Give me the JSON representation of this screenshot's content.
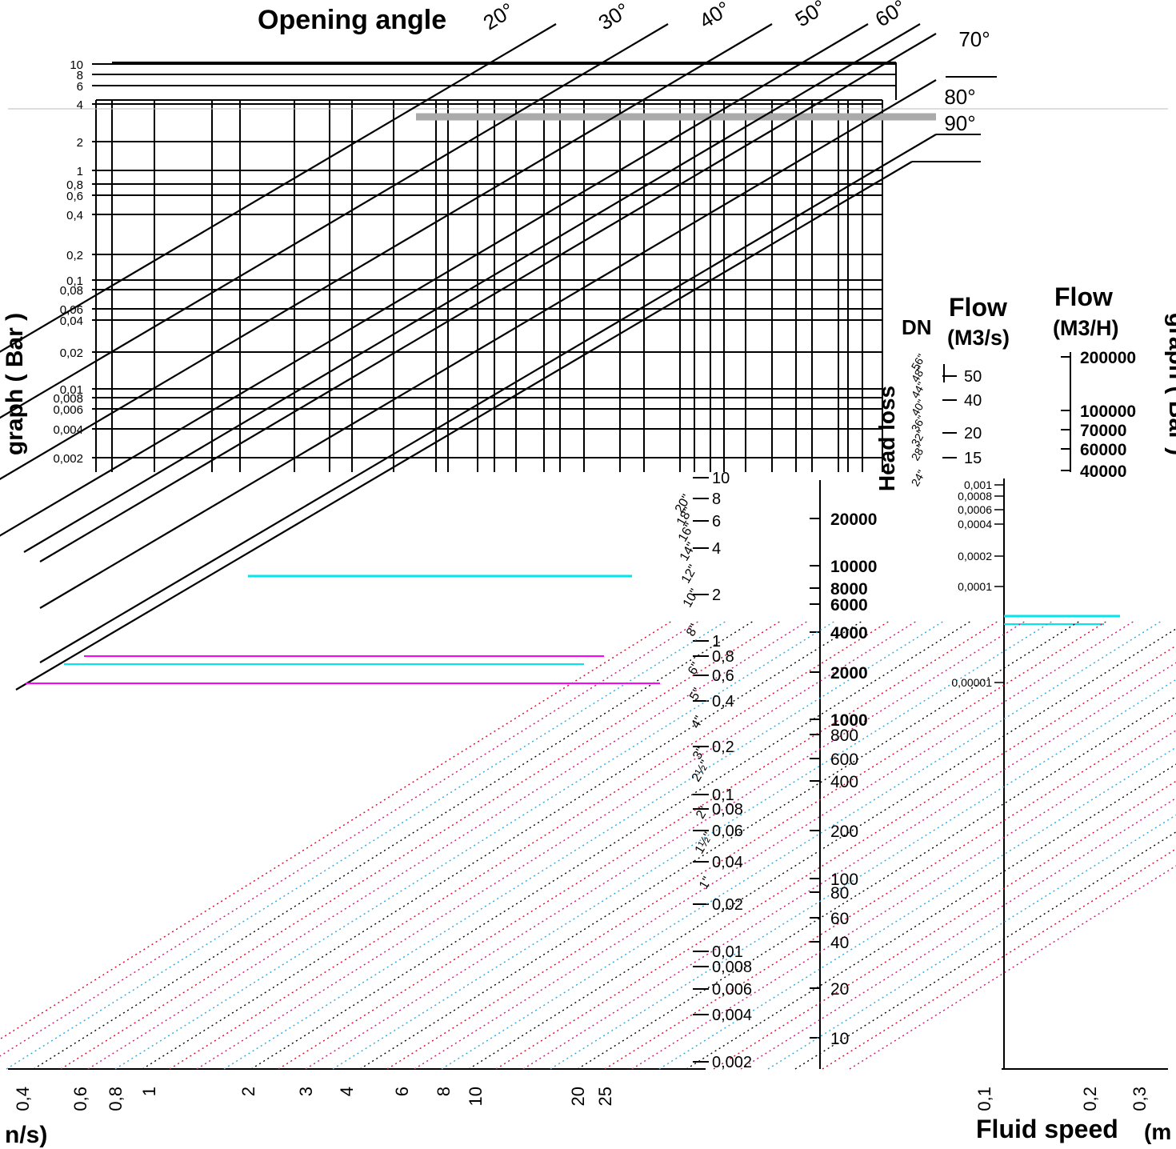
{
  "chart_data": {
    "type": "nomogram",
    "title": "Opening angle",
    "opening_angles": [
      "20°",
      "30°",
      "40°",
      "50°",
      "60°",
      "70°",
      "80°",
      "90°"
    ],
    "top_y_ticks": [
      "10",
      "8",
      "6",
      "4",
      "2",
      "1",
      "0,8",
      "0,6",
      "0,4",
      "0,2",
      "0,1",
      "0,08",
      "0,06",
      "0,04",
      "0,02",
      "0,01",
      "0,008",
      "0,006",
      "0,004",
      "0,002"
    ],
    "left_side_label": "graph ( Bar )",
    "right_side_label": "graph ( Bar )",
    "dn_label": "DN",
    "dn_sizes": [
      "56\"",
      "48\"",
      "44\"",
      "40\"",
      "36\"",
      "32\"",
      "28\"",
      "24\"",
      "20\"",
      "18\"",
      "16\"",
      "14\"",
      "12\"",
      "10\"",
      "8\"",
      "6\"",
      "5\"",
      "4\"",
      "3\"",
      "2½\"",
      "2\"",
      "1½\"",
      "1\""
    ],
    "flow_m3s_title": "Flow",
    "flow_m3s_unit": "(M3/s)",
    "flow_m3s_ticks": [
      "50",
      "40",
      "20",
      "15",
      "10",
      "8",
      "6",
      "4",
      "2",
      "1",
      "0,8",
      "0,6",
      "0,4",
      "0,2",
      "0,1",
      "0,08",
      "0,06",
      "0,04",
      "0,02",
      "0,01",
      "0,008",
      "0,006",
      "0,004",
      "0,002"
    ],
    "flow_m3h_title": "Flow",
    "flow_m3h_unit": "(M3/H)",
    "flow_m3h_ticks": [
      "200000",
      "100000",
      "70000",
      "60000",
      "40000",
      "20000",
      "10000",
      "8000",
      "6000",
      "4000",
      "2000",
      "1000",
      "800",
      "600",
      "400",
      "200",
      "100",
      "80",
      "60",
      "40",
      "20",
      "10"
    ],
    "head_loss_label": "Head loss",
    "head_loss_ticks": [
      "0,001",
      "0,0008",
      "0,0006",
      "0,0004",
      "0,0002",
      "0,0001",
      "0,00001"
    ],
    "left_x_ticks": [
      "0,4",
      "0,6",
      "0,8",
      "1",
      "2",
      "3",
      "4",
      "6",
      "8",
      "10",
      "20",
      "25"
    ],
    "left_x_label_fragment": "n/s)",
    "right_x_ticks": [
      "0,1",
      "0,2",
      "0,3"
    ],
    "right_x_label": "Fluid speed",
    "right_x_label_fragment": "(m"
  }
}
